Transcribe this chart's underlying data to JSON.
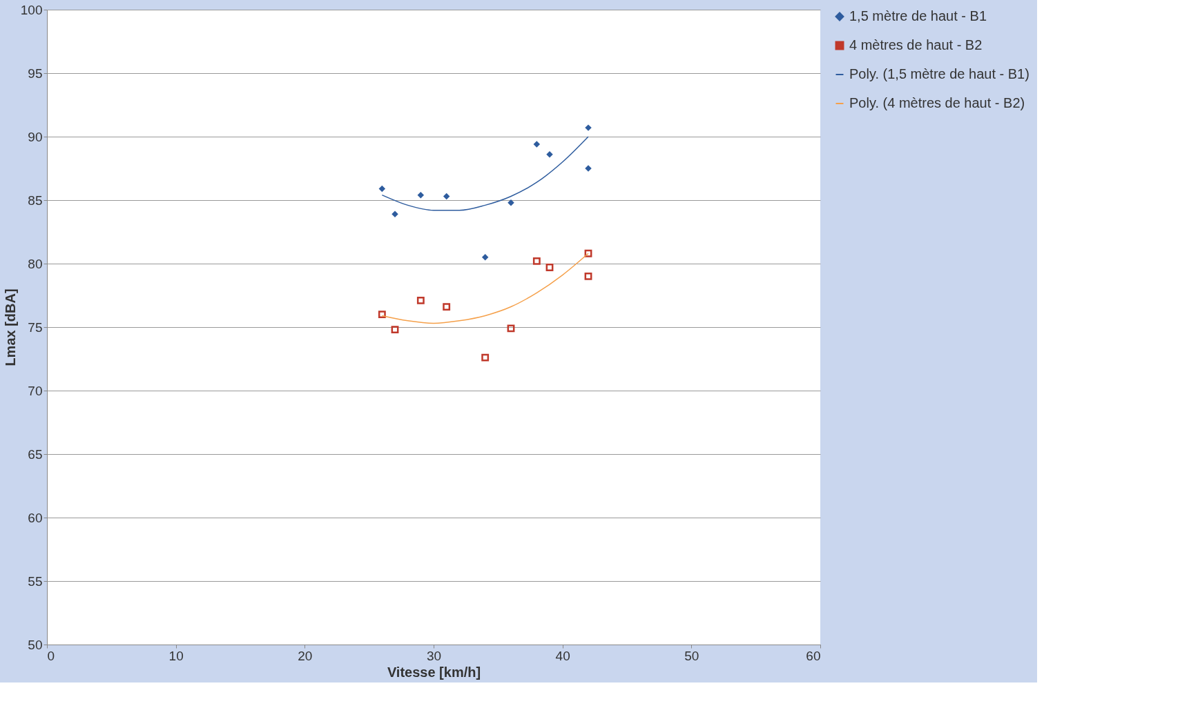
{
  "chart_data": {
    "type": "scatter",
    "xlabel": "Vitesse  [km/h]",
    "ylabel": "Lmax  [dBA]",
    "xlim": [
      0,
      60
    ],
    "xticks": [
      0,
      10,
      20,
      30,
      40,
      50,
      60
    ],
    "ylim": [
      50,
      100
    ],
    "yticks": [
      50,
      55,
      60,
      65,
      70,
      75,
      80,
      85,
      90,
      95,
      100
    ],
    "grid": "y",
    "legend": "right",
    "series": [
      {
        "name": "1,5  mètre de haut - B1",
        "marker": "diamond",
        "color": "#2e5c9e",
        "x": [
          26,
          27,
          29,
          31,
          34,
          36,
          38,
          39,
          42,
          42
        ],
        "values": [
          85.9,
          83.9,
          85.4,
          85.3,
          80.5,
          84.8,
          89.4,
          88.6,
          90.7,
          87.5
        ]
      },
      {
        "name": "4  mètres de haut - B2",
        "marker": "square",
        "color": "#c0392b",
        "x": [
          26,
          27,
          29,
          31,
          34,
          36,
          38,
          39,
          42,
          42
        ],
        "values": [
          76.0,
          74.8,
          77.1,
          76.6,
          72.6,
          74.9,
          80.2,
          79.7,
          80.8,
          79.0
        ]
      },
      {
        "name": "Poly. (1,5  mètre de haut - B1)",
        "type": "line",
        "marker": "none",
        "color": "#2e5c9e",
        "x": [
          26,
          28,
          30,
          32,
          34,
          36,
          38,
          40,
          42
        ],
        "values": [
          85.4,
          84.6,
          84.2,
          84.2,
          84.6,
          85.3,
          86.4,
          88.0,
          90.0
        ]
      },
      {
        "name": "Poly. (4  mètres de haut - B2)",
        "type": "line",
        "marker": "none",
        "color": "#f5a04a",
        "x": [
          26,
          28,
          30,
          32,
          34,
          36,
          38,
          40,
          42
        ],
        "values": [
          75.9,
          75.5,
          75.3,
          75.5,
          75.9,
          76.6,
          77.7,
          79.1,
          80.8
        ]
      }
    ]
  }
}
